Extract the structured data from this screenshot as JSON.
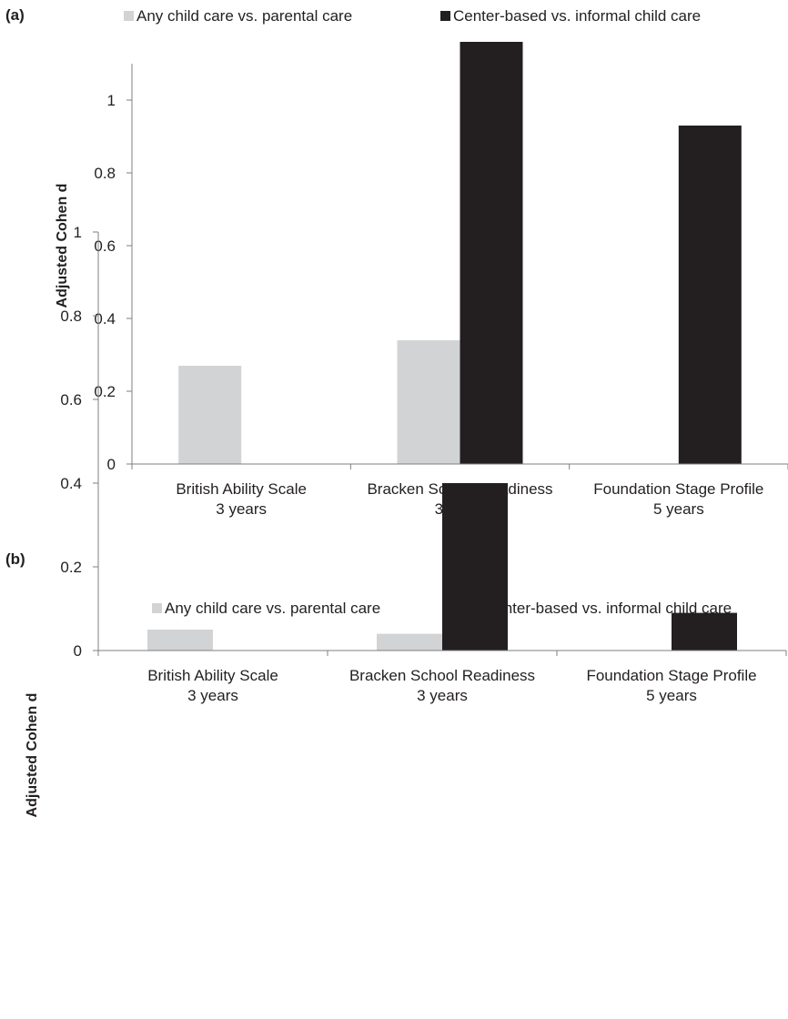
{
  "colors": {
    "series_any": "#d2d3d4",
    "series_center": "#231f20",
    "axis": "#7f7f7f",
    "text": "#231f20"
  },
  "chart_data": [
    {
      "panel_label": "(a)",
      "type": "bar",
      "ylabel": "Adjusted Cohen d",
      "ylim": [
        0,
        1.1
      ],
      "yticks": [
        "0",
        "0.2",
        "0.4",
        "0.6",
        "0.8",
        "1"
      ],
      "categories": [
        [
          "British Ability Scale",
          "3 years"
        ],
        [
          "Bracken School Readiness",
          "3 years"
        ],
        [
          "Foundation Stage Profile",
          "5 years"
        ]
      ],
      "series": [
        {
          "name": "Any child care vs. parental care",
          "values": [
            0.27,
            0.34,
            null
          ]
        },
        {
          "name": "Center-based vs. informal child care",
          "values": [
            null,
            1.16,
            0.93
          ]
        }
      ],
      "legend": "top",
      "grid": false
    },
    {
      "panel_label": "(b)",
      "type": "bar",
      "ylabel": "Adjusted Cohen d",
      "ylim": [
        0,
        1
      ],
      "yticks": [
        "0",
        "0.2",
        "0.4",
        "0.6",
        "0.8",
        "1"
      ],
      "categories": [
        [
          "British Ability Scale",
          "3 years"
        ],
        [
          "Bracken School Readiness",
          "3 years"
        ],
        [
          "Foundation Stage Profile",
          "5 years"
        ]
      ],
      "series": [
        {
          "name": "Any child care vs. parental care",
          "values": [
            0.05,
            0.04,
            null
          ]
        },
        {
          "name": "Center-based vs. informal child care",
          "values": [
            null,
            0.4,
            0.09
          ]
        }
      ],
      "legend": "inside-top",
      "grid": false
    }
  ]
}
